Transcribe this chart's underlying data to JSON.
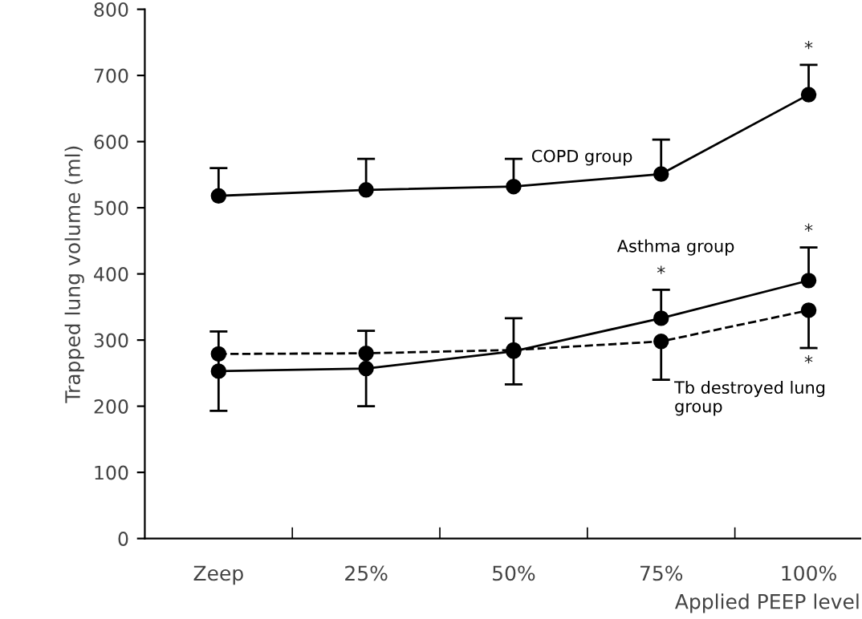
{
  "chart_data": {
    "type": "line",
    "xlabel": "Applied PEEP level",
    "ylabel": "Trapped lung volume (ml)",
    "categories": [
      "Zeep",
      "25%",
      "50%",
      "75%",
      "100%"
    ],
    "ylim": [
      0,
      800
    ],
    "yticks": [
      0,
      100,
      200,
      300,
      400,
      500,
      600,
      700,
      800
    ],
    "marker": "circle",
    "grid": false,
    "legend": false,
    "series": [
      {
        "name": "COPD group",
        "color": "#000000",
        "line_style": "solid",
        "values": [
          518,
          527,
          532,
          551,
          671
        ],
        "errors": [
          [
            518,
            560
          ],
          [
            527,
            574
          ],
          [
            532,
            574
          ],
          [
            551,
            603
          ],
          [
            671,
            716
          ]
        ]
      },
      {
        "name": "Asthma group",
        "color": "#000000",
        "line_style": "solid",
        "values": [
          253,
          257,
          283,
          333,
          390
        ],
        "errors": [
          60,
          57,
          50,
          [
            333,
            376
          ],
          [
            390,
            440
          ]
        ]
      },
      {
        "name": "Tb destroyed lung group",
        "color": "#000000",
        "line_style": "dashed",
        "values": [
          279,
          280,
          285,
          298,
          345
        ],
        "errors": [
          null,
          null,
          null,
          [
            240,
            298
          ],
          [
            288,
            345
          ]
        ]
      }
    ],
    "annotations": [
      "*",
      "*",
      "*",
      "*"
    ]
  }
}
